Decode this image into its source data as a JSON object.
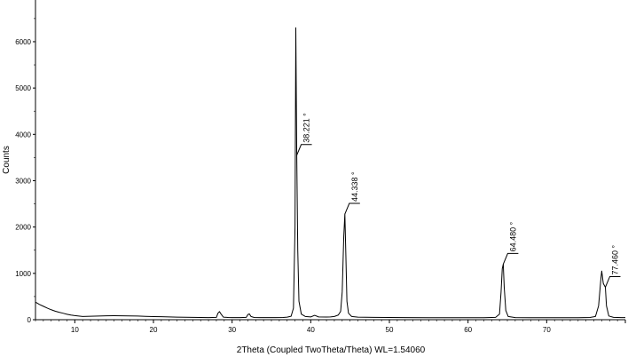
{
  "chart_data": {
    "type": "line",
    "title": "",
    "xlabel": "2Theta (Coupled TwoTheta/Theta) WL=1.54060",
    "ylabel": "Counts",
    "xlim": [
      5,
      80
    ],
    "ylim": [
      0,
      6900
    ],
    "x_ticks": [
      10,
      20,
      30,
      40,
      50,
      60,
      70
    ],
    "y_ticks": [
      0,
      1000,
      2000,
      3000,
      4000,
      5000,
      6000
    ],
    "grid": false,
    "legend": "none",
    "series": [
      {
        "line_color": "#000000",
        "points": [
          [
            5,
            380
          ],
          [
            5.5,
            330
          ],
          [
            6,
            290
          ],
          [
            6.5,
            250
          ],
          [
            7,
            215
          ],
          [
            7.5,
            185
          ],
          [
            8,
            160
          ],
          [
            8.5,
            140
          ],
          [
            9,
            118
          ],
          [
            9.5,
            100
          ],
          [
            10,
            88
          ],
          [
            10.5,
            78
          ],
          [
            11,
            70
          ],
          [
            11.5,
            72
          ],
          [
            12,
            75
          ],
          [
            13,
            80
          ],
          [
            14,
            84
          ],
          [
            15,
            86
          ],
          [
            16,
            85
          ],
          [
            17,
            82
          ],
          [
            18,
            78
          ],
          [
            19,
            73
          ],
          [
            20,
            68
          ],
          [
            21,
            64
          ],
          [
            22,
            60
          ],
          [
            23,
            56
          ],
          [
            24,
            52
          ],
          [
            25,
            50
          ],
          [
            26,
            48
          ],
          [
            27,
            46
          ],
          [
            28,
            50
          ],
          [
            28.2,
            140
          ],
          [
            28.4,
            175
          ],
          [
            28.6,
            120
          ],
          [
            28.9,
            55
          ],
          [
            29.5,
            48
          ],
          [
            30,
            46
          ],
          [
            31,
            45
          ],
          [
            31.8,
            50
          ],
          [
            32,
            110
          ],
          [
            32.2,
            125
          ],
          [
            32.4,
            70
          ],
          [
            32.8,
            48
          ],
          [
            33.5,
            46
          ],
          [
            34.5,
            45
          ],
          [
            35.5,
            46
          ],
          [
            36.5,
            48
          ],
          [
            37,
            55
          ],
          [
            37.5,
            75
          ],
          [
            37.8,
            250
          ],
          [
            38.0,
            2000
          ],
          [
            38.1,
            6300
          ],
          [
            38.221,
            3550
          ],
          [
            38.35,
            1500
          ],
          [
            38.5,
            400
          ],
          [
            38.8,
            120
          ],
          [
            39.3,
            70
          ],
          [
            40,
            60
          ],
          [
            40.5,
            95
          ],
          [
            41,
            60
          ],
          [
            42,
            58
          ],
          [
            42.5,
            60
          ],
          [
            43,
            70
          ],
          [
            43.5,
            100
          ],
          [
            43.8,
            180
          ],
          [
            44.0,
            600
          ],
          [
            44.2,
            1800
          ],
          [
            44.338,
            2280
          ],
          [
            44.45,
            1500
          ],
          [
            44.6,
            400
          ],
          [
            44.8,
            140
          ],
          [
            45.2,
            70
          ],
          [
            46,
            55
          ],
          [
            48,
            50
          ],
          [
            50,
            48
          ],
          [
            52,
            46
          ],
          [
            55,
            44
          ],
          [
            58,
            43
          ],
          [
            60,
            43
          ],
          [
            62,
            44
          ],
          [
            63.5,
            50
          ],
          [
            64.0,
            120
          ],
          [
            64.2,
            600
          ],
          [
            64.35,
            1100
          ],
          [
            64.48,
            1200
          ],
          [
            64.6,
            700
          ],
          [
            64.8,
            200
          ],
          [
            65.1,
            70
          ],
          [
            66,
            45
          ],
          [
            68,
            42
          ],
          [
            70,
            42
          ],
          [
            72,
            42
          ],
          [
            74,
            44
          ],
          [
            75.5,
            48
          ],
          [
            76.2,
            70
          ],
          [
            76.6,
            300
          ],
          [
            76.9,
            900
          ],
          [
            77.0,
            1050
          ],
          [
            77.2,
            780
          ],
          [
            77.46,
            700
          ],
          [
            77.6,
            300
          ],
          [
            77.9,
            80
          ],
          [
            78.5,
            50
          ],
          [
            79.5,
            45
          ],
          [
            80,
            45
          ]
        ]
      }
    ],
    "annotations": [
      {
        "x": 38.221,
        "y": 3550,
        "text": "38.221 °"
      },
      {
        "x": 44.338,
        "y": 2280,
        "text": "44.338 °"
      },
      {
        "x": 64.48,
        "y": 1200,
        "text": "64.480 °"
      },
      {
        "x": 77.46,
        "y": 700,
        "text": "77.460 °"
      }
    ]
  }
}
